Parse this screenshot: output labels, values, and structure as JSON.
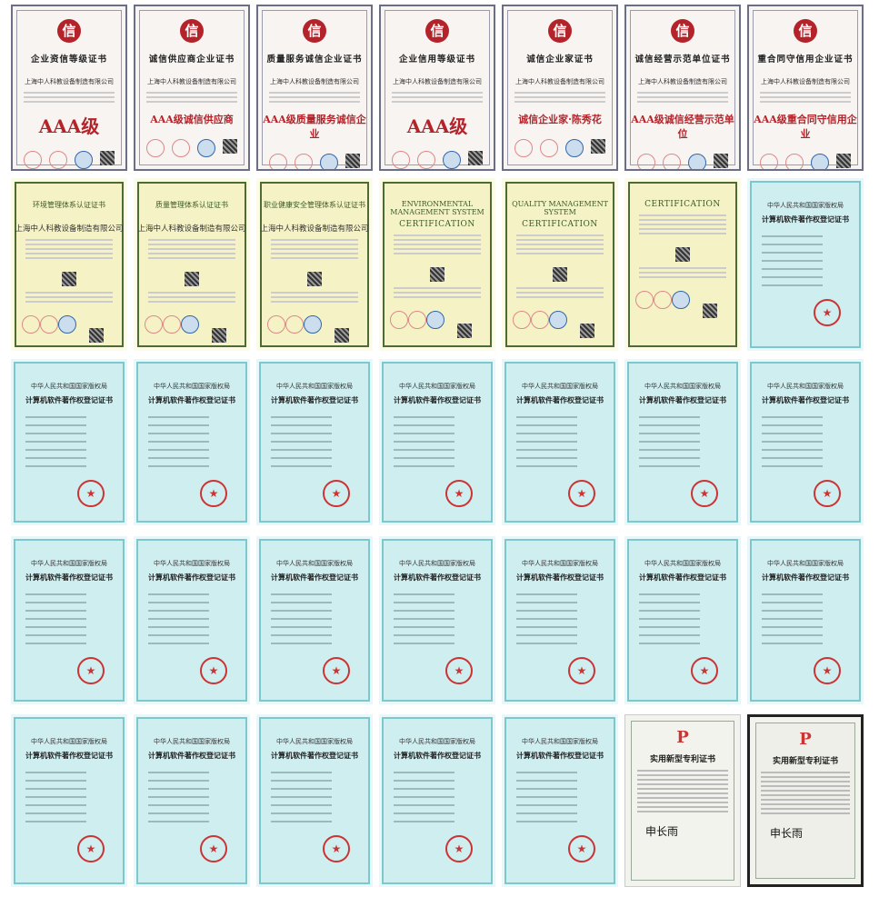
{
  "company_cn": "上海中人科教设备制造有限公司",
  "honor_certificates": [
    {
      "title": "企业资信等级证书",
      "grade": "AAA级",
      "large": true
    },
    {
      "title": "诚信供应商企业证书",
      "grade": "AAA级诚信供应商",
      "large": false
    },
    {
      "title": "质量服务诚信企业证书",
      "grade": "AAA级质量服务诚信企业",
      "large": false
    },
    {
      "title": "企业信用等级证书",
      "grade": "AAA级",
      "large": true
    },
    {
      "title": "诚信企业家证书",
      "grade": "诚信企业家·陈秀花",
      "large": false
    },
    {
      "title": "诚信经营示范单位证书",
      "grade": "AAA级诚信经营示范单位",
      "large": false
    },
    {
      "title": "重合同守信用企业证书",
      "grade": "AAA级重合同守信用企业",
      "large": false
    }
  ],
  "management_certificates": [
    {
      "title": "环境管理体系认证证书",
      "heading": ""
    },
    {
      "title": "质量管理体系认证证书",
      "heading": ""
    },
    {
      "title": "职业健康安全管理体系认证证书",
      "heading": ""
    },
    {
      "title": "ENVIRONMENTAL MANAGEMENT SYSTEM",
      "heading": "CERTIFICATION"
    },
    {
      "title": "QUALITY MANAGEMENT SYSTEM",
      "heading": "CERTIFICATION"
    },
    {
      "title": "",
      "heading": "CERTIFICATION"
    }
  ],
  "software_certificate": {
    "issuer": "中华人民共和国国家版权局",
    "title": "计算机软件著作权登记证书",
    "count": 20
  },
  "patent_certificate": {
    "title": "实用新型专利证书",
    "signature": "申长雨",
    "count": 2
  },
  "colors": {
    "honor_red": "#b5232a",
    "mgmt_green": "#4d6b33",
    "mgmt_bg": "#f5f3c6",
    "software_bg": "#cfeef0"
  }
}
